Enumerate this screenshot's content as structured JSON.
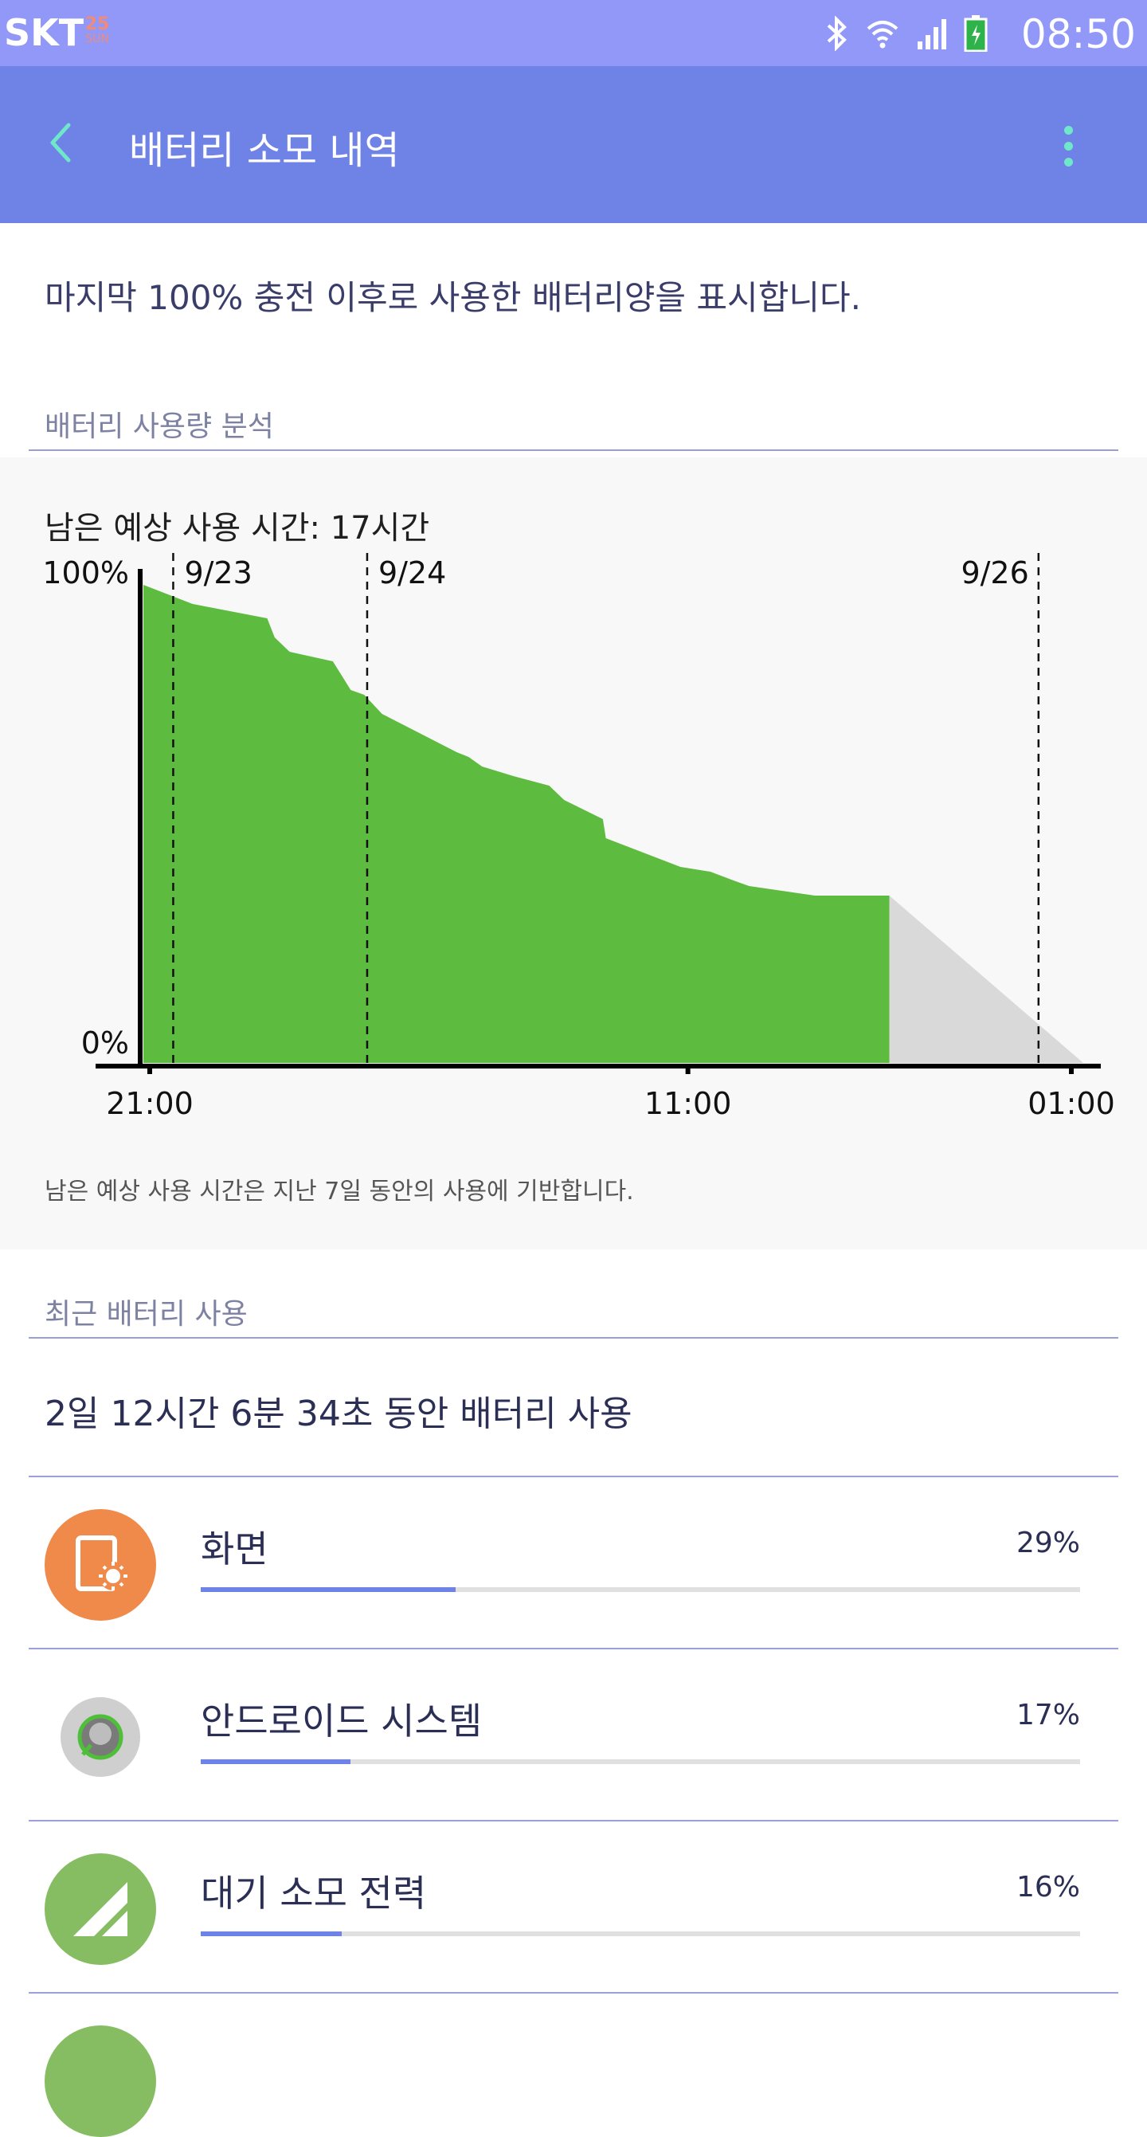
{
  "status_bar": {
    "carrier": "SKT",
    "date_day": "25",
    "date_weekday": "SUN",
    "time": "08:50",
    "icons": [
      "bluetooth-icon",
      "wifi-icon",
      "signal-icon",
      "battery-charging-icon"
    ]
  },
  "app_bar": {
    "title": "배터리 소모 내역",
    "back_icon": "chevron-left-icon",
    "more_icon": "more-vertical-icon",
    "accent_color": "#6f83e6"
  },
  "intro_text": "마지막 100% 충전 이후로 사용한 배터리양을 표시합니다.",
  "analysis": {
    "section_title": "배터리 사용량 분석",
    "remaining_time": "남은 예상 사용 시간: 17시간",
    "footnote": "남은 예상 사용 시간은 지난 7일 동안의 사용에 기반합니다."
  },
  "chart_data": {
    "type": "area",
    "y_tick_labels": [
      "100%",
      "0%"
    ],
    "x_tick_labels": [
      "21:00",
      "11:00",
      "01:00"
    ],
    "date_markers": [
      "9/23",
      "9/24",
      "9/26"
    ],
    "ylim": [
      0,
      100
    ],
    "series": [
      {
        "color": "#5dbb3f",
        "x_hours": [
          0,
          3.3,
          8.3,
          8.8,
          9.8,
          12.7,
          13.9,
          14.8,
          16.0,
          18.5,
          21.0,
          21.8,
          22.7,
          24.8,
          27.2,
          28.2,
          30.8,
          31.0,
          36.0,
          38.0,
          39.7,
          40.6,
          45.0,
          50.0
        ],
        "values": [
          100,
          96,
          93,
          89,
          86,
          84,
          78,
          77,
          73,
          69,
          65,
          64,
          62,
          60,
          58,
          55,
          51,
          47,
          41,
          40,
          38,
          37,
          35,
          35
        ]
      },
      {
        "color": "#d9d9d9",
        "x_hours": [
          50.0,
          63.0
        ],
        "values": [
          35,
          0
        ]
      }
    ],
    "grid": false
  },
  "recent": {
    "section_title": "최근 배터리 사용",
    "total_usage": "2일 12시간 6분 34초 동안 배터리 사용",
    "items": [
      {
        "name": "화면",
        "percent": "29%",
        "value": 29,
        "icon": "screen-brightness-icon",
        "icon_color": "#f08a4b"
      },
      {
        "name": "안드로이드 시스템",
        "percent": "17%",
        "value": 17,
        "icon": "android-system-icon",
        "icon_color": "#c9c9c9"
      },
      {
        "name": "대기 소모 전력",
        "percent": "16%",
        "value": 16,
        "icon": "cell-standby-icon",
        "icon_color": "#86bd62"
      }
    ]
  }
}
